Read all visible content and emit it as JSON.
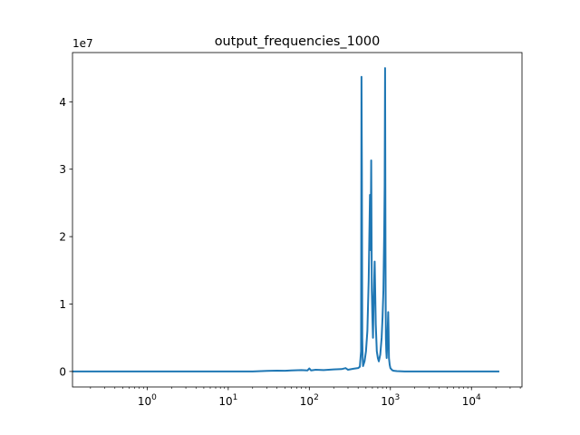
{
  "chart_data": {
    "type": "line",
    "title": "output_frequencies_1000",
    "xlabel": "",
    "ylabel": "",
    "x_scale": "log",
    "xlim": [
      0.12,
      42000
    ],
    "ylim": [
      -2300000,
      47300000
    ],
    "y_offset_label": "1e7",
    "x_ticks": [
      {
        "value": 1,
        "base": "10",
        "exp": "0"
      },
      {
        "value": 10,
        "base": "10",
        "exp": "1"
      },
      {
        "value": 100,
        "base": "10",
        "exp": "2"
      },
      {
        "value": 1000,
        "base": "10",
        "exp": "3"
      },
      {
        "value": 10000,
        "base": "10",
        "exp": "4"
      }
    ],
    "y_ticks": [
      {
        "value": 0,
        "label": "0"
      },
      {
        "value": 10000000,
        "label": "1"
      },
      {
        "value": 20000000,
        "label": "2"
      },
      {
        "value": 30000000,
        "label": "3"
      },
      {
        "value": 40000000,
        "label": "4"
      }
    ],
    "grid": false,
    "line_color": "#1f77b4",
    "series": [
      {
        "x": [
          0.12,
          20,
          30,
          40,
          50,
          60,
          80,
          95,
          100,
          105,
          120,
          150,
          200,
          250,
          280,
          300,
          350,
          400,
          420,
          435,
          440,
          445,
          450,
          455,
          460,
          480,
          500,
          520,
          540,
          550,
          560,
          570,
          580,
          590,
          600,
          610,
          620,
          640,
          660,
          680,
          700,
          720,
          750,
          780,
          800,
          820,
          840,
          850,
          860,
          865,
          870,
          875,
          880,
          890,
          900,
          920,
          940,
          950,
          960,
          980,
          1000,
          1050,
          1100,
          1200,
          1500,
          2000,
          5000,
          10000,
          22050
        ],
        "y": [
          0,
          0,
          80000,
          120000,
          100000,
          150000,
          200000,
          150000,
          450000,
          150000,
          250000,
          200000,
          300000,
          350000,
          500000,
          250000,
          400000,
          500000,
          700000,
          3000000,
          43700000,
          30000000,
          5000000,
          2000000,
          800000,
          1500000,
          3000000,
          6000000,
          13500000,
          20000000,
          26200000,
          18000000,
          31300000,
          12000000,
          8000000,
          5000000,
          10000000,
          16300000,
          7000000,
          3000000,
          2000000,
          1500000,
          2500000,
          5000000,
          8000000,
          12000000,
          21000000,
          27500000,
          45000000,
          32000000,
          18000000,
          10000000,
          5000000,
          3000000,
          2000000,
          5000000,
          8800000,
          6000000,
          2000000,
          1000000,
          500000,
          200000,
          100000,
          50000,
          0,
          0,
          0,
          0,
          0
        ]
      }
    ]
  }
}
